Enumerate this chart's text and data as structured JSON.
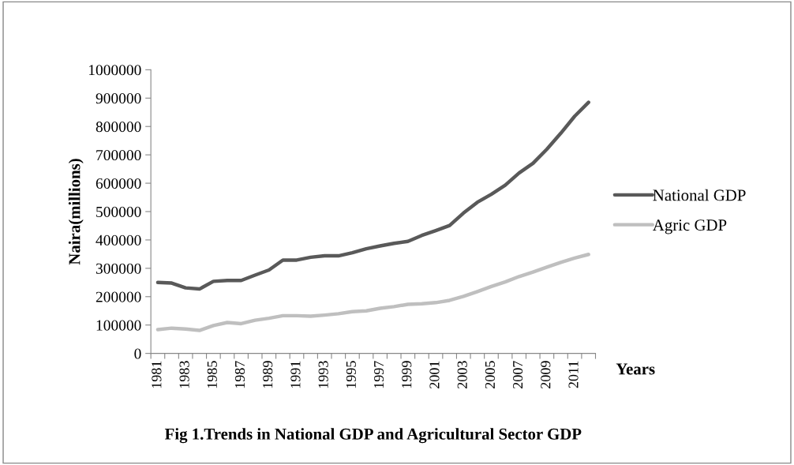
{
  "chart_data": {
    "type": "line",
    "title": "Fig 1.Trends in National GDP and Agricultural Sector GDP",
    "xlabel": "Years",
    "ylabel": "Naira(millions)",
    "categories": [
      "1981",
      null,
      "1983",
      null,
      "1985",
      null,
      "1987",
      null,
      "1989",
      null,
      "1991",
      null,
      "1993",
      null,
      "1995",
      null,
      "1997",
      null,
      "1999",
      null,
      "2001",
      null,
      "2003",
      null,
      "2005",
      null,
      "2007",
      null,
      "2009",
      null,
      "2011",
      null
    ],
    "series": [
      {
        "name": "National GDP",
        "color": "#595959",
        "values": [
          250000,
          248000,
          231000,
          227000,
          254000,
          257000,
          257000,
          276000,
          294000,
          329000,
          329000,
          339000,
          344000,
          344000,
          355000,
          369000,
          379000,
          388000,
          395000,
          416000,
          433000,
          451000,
          495000,
          533000,
          561000,
          593000,
          636000,
          670000,
          720000,
          776000,
          836000,
          885000
        ]
      },
      {
        "name": "Agric GDP",
        "color": "#bfbfbf",
        "values": [
          84000,
          89000,
          86000,
          81000,
          98000,
          109000,
          105000,
          117000,
          124000,
          133000,
          133000,
          131000,
          135000,
          140000,
          147000,
          150000,
          159000,
          165000,
          173000,
          175000,
          179000,
          187000,
          201000,
          218000,
          236000,
          252000,
          271000,
          287000,
          304000,
          321000,
          336000,
          349000
        ]
      }
    ],
    "ylim": [
      0,
      1000000
    ],
    "yticks": [
      0,
      100000,
      200000,
      300000,
      400000,
      500000,
      600000,
      700000,
      800000,
      900000,
      1000000
    ],
    "legend": "right",
    "grid": false,
    "marker": "none",
    "line_style": "solid"
  }
}
